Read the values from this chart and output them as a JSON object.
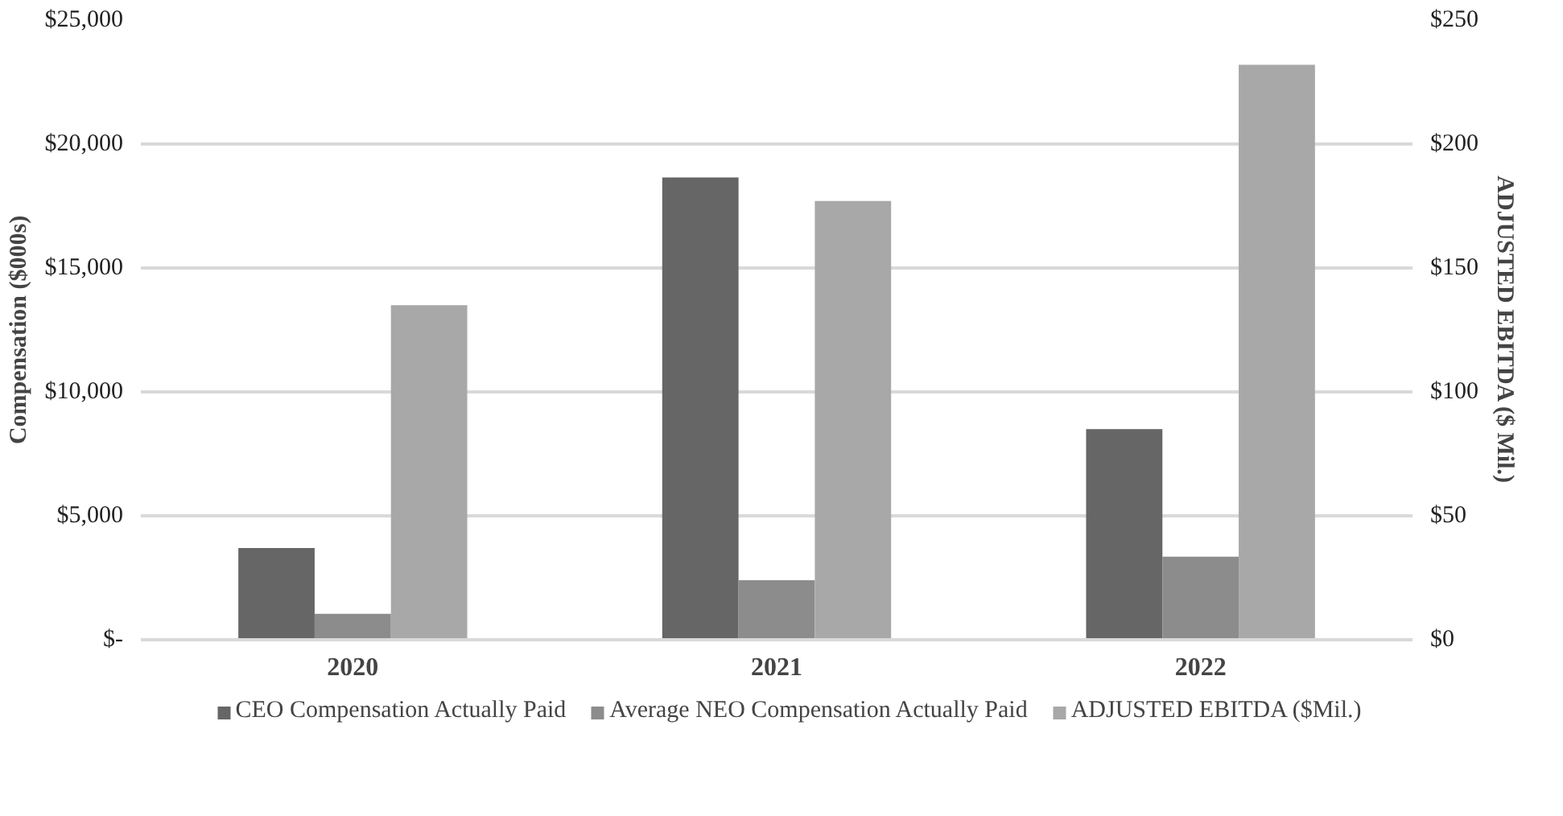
{
  "chart_data": {
    "type": "bar",
    "categories": [
      "2020",
      "2021",
      "2022"
    ],
    "ylabel": "Compensation ($000s)",
    "y2label": "ADJUSTED EBITDA ($ Mil.)",
    "ylim": [
      0,
      25000
    ],
    "yticks": [
      {
        "value": 0,
        "label": "$-"
      },
      {
        "value": 5000,
        "label": "$5,000"
      },
      {
        "value": 10000,
        "label": "$10,000"
      },
      {
        "value": 15000,
        "label": "$15,000"
      },
      {
        "value": 20000,
        "label": "$20,000"
      },
      {
        "value": 25000,
        "label": "$25,000"
      }
    ],
    "y2lim": [
      0,
      250
    ],
    "y2ticks": [
      {
        "value": 0,
        "label": "$0"
      },
      {
        "value": 50,
        "label": "$50"
      },
      {
        "value": 100,
        "label": "$100"
      },
      {
        "value": 150,
        "label": "$150"
      },
      {
        "value": 200,
        "label": "$200"
      },
      {
        "value": 250,
        "label": "$250"
      }
    ],
    "series": [
      {
        "name": "CEO Compensation Actually Paid",
        "color": "#666666",
        "values": [
          3700,
          18650,
          8500
        ]
      },
      {
        "name": "Average NEO Compensation Actually Paid",
        "color": "#8c8c8c",
        "values": [
          1050,
          2400,
          3350
        ]
      },
      {
        "name": "ADJUSTED EBITDA ($Mil.)",
        "color": "#a8a8a8",
        "values": [
          135,
          177,
          232
        ],
        "axis": "y2"
      }
    ],
    "grid": "y",
    "legend": "bottom"
  }
}
